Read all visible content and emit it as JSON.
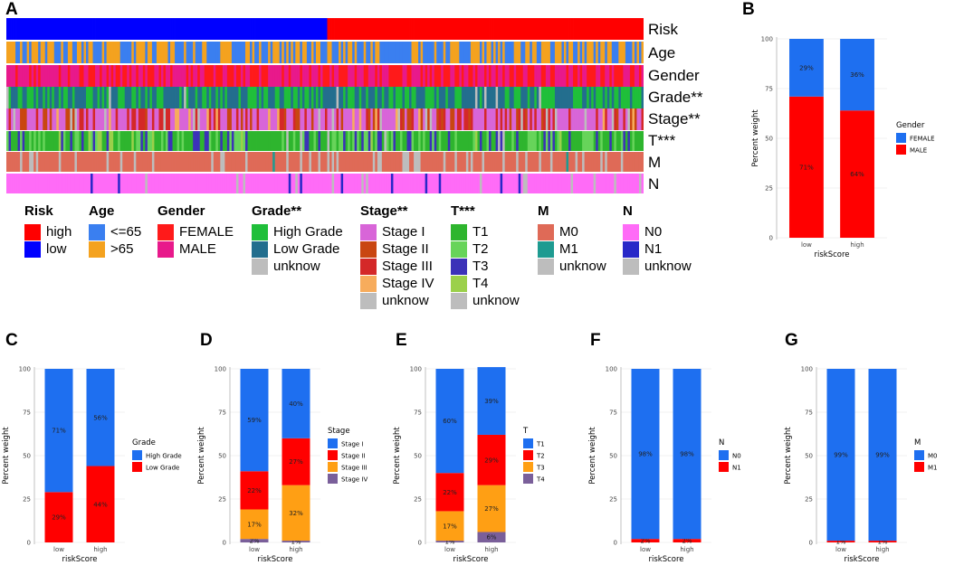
{
  "panels": {
    "a": "A",
    "b": "B",
    "c": "C",
    "d": "D",
    "e": "E",
    "f": "F",
    "g": "G"
  },
  "heatmap": {
    "rows": [
      {
        "label": "Risk",
        "seed": 11
      },
      {
        "label": "Age",
        "seed": 23
      },
      {
        "label": "Gender",
        "seed": 37
      },
      {
        "label": "Grade**",
        "seed": 41
      },
      {
        "label": "Stage**",
        "seed": 53
      },
      {
        "label": "T***",
        "seed": 67
      },
      {
        "label": "M",
        "seed": 79
      },
      {
        "label": "N",
        "seed": 97
      }
    ],
    "legends": [
      {
        "title": "Risk",
        "items": [
          {
            "label": "high",
            "color": "#ff0000"
          },
          {
            "label": "low",
            "color": "#0000ff"
          }
        ]
      },
      {
        "title": "Age",
        "items": [
          {
            "label": "<=65",
            "color": "#3a7ff0"
          },
          {
            "label": ">65",
            "color": "#f4a21f"
          }
        ]
      },
      {
        "title": "Gender",
        "items": [
          {
            "label": "FEMALE",
            "color": "#ff1a1a"
          },
          {
            "label": "MALE",
            "color": "#e8198b"
          }
        ]
      },
      {
        "title": "Grade**",
        "items": [
          {
            "label": "High Grade",
            "color": "#1fbf3a"
          },
          {
            "label": "Low Grade",
            "color": "#236e8e"
          },
          {
            "label": "unknow",
            "color": "#bdbdbd"
          }
        ]
      },
      {
        "title": "Stage**",
        "items": [
          {
            "label": "Stage I",
            "color": "#d865d8"
          },
          {
            "label": "Stage II",
            "color": "#c94611"
          },
          {
            "label": "Stage III",
            "color": "#d42828"
          },
          {
            "label": "Stage IV",
            "color": "#f7ac5c"
          },
          {
            "label": "unknow",
            "color": "#bdbdbd"
          }
        ]
      },
      {
        "title": "T***",
        "items": [
          {
            "label": "T1",
            "color": "#2eb52e"
          },
          {
            "label": "T2",
            "color": "#67d45a"
          },
          {
            "label": "T3",
            "color": "#3c32b8"
          },
          {
            "label": "T4",
            "color": "#9bd04a"
          },
          {
            "label": "unknow",
            "color": "#bdbdbd"
          }
        ]
      },
      {
        "title": "M",
        "items": [
          {
            "label": "M0",
            "color": "#df6a57"
          },
          {
            "label": "M1",
            "color": "#1e9b91"
          },
          {
            "label": "unknow",
            "color": "#bdbdbd"
          }
        ]
      },
      {
        "title": "N",
        "items": [
          {
            "label": "N0",
            "color": "#ff6bf7"
          },
          {
            "label": "N1",
            "color": "#2828c8"
          },
          {
            "label": "unknow",
            "color": "#bdbdbd"
          }
        ]
      }
    ]
  },
  "chart_data": [
    {
      "id": "B",
      "type": "bar",
      "stacked": true,
      "categories": [
        "low",
        "high"
      ],
      "series": [
        {
          "name": "MALE",
          "color": "#ff0000",
          "values": [
            71,
            64
          ],
          "labels": [
            "71%",
            "64%"
          ]
        },
        {
          "name": "FEMALE",
          "color": "#1e6ff0",
          "values": [
            29,
            36
          ],
          "labels": [
            "29%",
            "36%"
          ]
        }
      ],
      "legend_title": "Gender",
      "legend_order": [
        "FEMALE",
        "MALE"
      ],
      "xlabel": "riskScore",
      "ylabel": "Percent weight",
      "ylim": [
        0,
        100
      ],
      "yticks": [
        "0",
        "25",
        "50",
        "75",
        "100"
      ]
    },
    {
      "id": "C",
      "type": "bar",
      "stacked": true,
      "categories": [
        "low",
        "high"
      ],
      "series": [
        {
          "name": "Low Grade",
          "color": "#ff0000",
          "values": [
            29,
            44
          ],
          "labels": [
            "29%",
            "44%"
          ]
        },
        {
          "name": "High Grade",
          "color": "#1e6ff0",
          "values": [
            71,
            56
          ],
          "labels": [
            "71%",
            "56%"
          ]
        }
      ],
      "legend_title": "Grade",
      "legend_order": [
        "High Grade",
        "Low Grade"
      ],
      "xlabel": "riskScore",
      "ylabel": "Percent weight",
      "ylim": [
        0,
        100
      ],
      "yticks": [
        "0",
        "25",
        "50",
        "75",
        "100"
      ]
    },
    {
      "id": "D",
      "type": "bar",
      "stacked": true,
      "categories": [
        "low",
        "high"
      ],
      "series": [
        {
          "name": "Stage IV",
          "color": "#7a5f9a",
          "values": [
            2,
            1
          ],
          "labels": [
            "2%",
            "1%"
          ]
        },
        {
          "name": "Stage III",
          "color": "#ff9f14",
          "values": [
            17,
            32
          ],
          "labels": [
            "17%",
            "32%"
          ]
        },
        {
          "name": "Stage II",
          "color": "#ff0000",
          "values": [
            22,
            27
          ],
          "labels": [
            "22%",
            "27%"
          ]
        },
        {
          "name": "Stage I",
          "color": "#1e6ff0",
          "values": [
            59,
            40
          ],
          "labels": [
            "59%",
            "40%"
          ]
        }
      ],
      "legend_title": "Stage",
      "legend_order": [
        "Stage I",
        "Stage II",
        "Stage III",
        "Stage IV"
      ],
      "xlabel": "riskScore",
      "ylabel": "Percent weight",
      "ylim": [
        0,
        100
      ],
      "yticks": [
        "0",
        "25",
        "50",
        "75",
        "100"
      ]
    },
    {
      "id": "E",
      "type": "bar",
      "stacked": true,
      "categories": [
        "low",
        "high"
      ],
      "series": [
        {
          "name": "T4",
          "color": "#7a5f9a",
          "values": [
            1,
            6
          ],
          "labels": [
            "1%",
            "6%"
          ]
        },
        {
          "name": "T3",
          "color": "#ff9f14",
          "values": [
            17,
            27
          ],
          "labels": [
            "17%",
            "27%"
          ]
        },
        {
          "name": "T2",
          "color": "#ff0000",
          "values": [
            22,
            29
          ],
          "labels": [
            "22%",
            "29%"
          ]
        },
        {
          "name": "T1",
          "color": "#1e6ff0",
          "values": [
            60,
            39
          ],
          "labels": [
            "60%",
            "39%"
          ]
        }
      ],
      "legend_title": "T",
      "legend_order": [
        "T1",
        "T2",
        "T3",
        "T4"
      ],
      "xlabel": "riskScore",
      "ylabel": "Percent weight",
      "ylim": [
        0,
        100
      ],
      "yticks": [
        "0",
        "25",
        "50",
        "75",
        "100"
      ]
    },
    {
      "id": "F",
      "type": "bar",
      "stacked": true,
      "categories": [
        "low",
        "high"
      ],
      "series": [
        {
          "name": "N1",
          "color": "#ff0000",
          "values": [
            2,
            2
          ],
          "labels": [
            "2%",
            "2%"
          ]
        },
        {
          "name": "N0",
          "color": "#1e6ff0",
          "values": [
            98,
            98
          ],
          "labels": [
            "98%",
            "98%"
          ]
        }
      ],
      "legend_title": "N",
      "legend_order": [
        "N0",
        "N1"
      ],
      "xlabel": "riskScore",
      "ylabel": "Percent weight",
      "ylim": [
        0,
        100
      ],
      "yticks": [
        "0",
        "25",
        "50",
        "75",
        "100"
      ]
    },
    {
      "id": "G",
      "type": "bar",
      "stacked": true,
      "categories": [
        "low",
        "high"
      ],
      "series": [
        {
          "name": "M1",
          "color": "#ff0000",
          "values": [
            1,
            1
          ],
          "labels": [
            "1%",
            "1%"
          ]
        },
        {
          "name": "M0",
          "color": "#1e6ff0",
          "values": [
            99,
            99
          ],
          "labels": [
            "99%",
            "99%"
          ]
        }
      ],
      "legend_title": "M",
      "legend_order": [
        "M0",
        "M1"
      ],
      "xlabel": "riskScore",
      "ylabel": "Percent weight",
      "ylim": [
        0,
        100
      ],
      "yticks": [
        "0",
        "25",
        "50",
        "75",
        "100"
      ]
    }
  ]
}
